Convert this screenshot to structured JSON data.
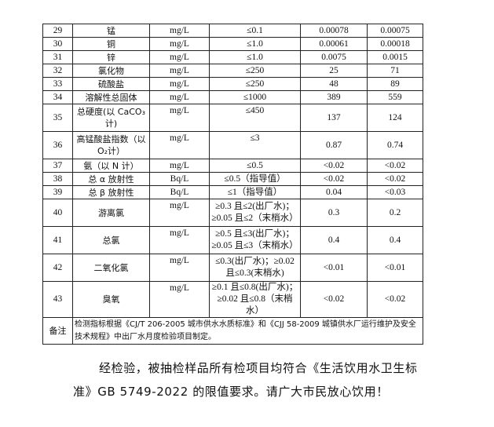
{
  "table": {
    "rows": [
      {
        "no": "29",
        "item": "锰",
        "unit": "mg/L",
        "limit": "≤0.1",
        "v1": "0.00078",
        "v2": "0.00075"
      },
      {
        "no": "30",
        "item": "铜",
        "unit": "mg/L",
        "limit": "≤1.0",
        "v1": "0.00061",
        "v2": "0.00018"
      },
      {
        "no": "31",
        "item": "锌",
        "unit": "mg/L",
        "limit": "≤1.0",
        "v1": "0.0075",
        "v2": "0.0015"
      },
      {
        "no": "32",
        "item": "氯化物",
        "unit": "mg/L",
        "limit": "≤250",
        "v1": "25",
        "v2": "71"
      },
      {
        "no": "33",
        "item": "硫酸盐",
        "unit": "mg/L",
        "limit": "≤250",
        "v1": "48",
        "v2": "89"
      },
      {
        "no": "34",
        "item": "溶解性总固体",
        "unit": "mg/L",
        "limit": "≤1000",
        "v1": "389",
        "v2": "559"
      },
      {
        "no": "35",
        "item": "总硬度(以 CaCO₃ 计)",
        "unit": "mg/L",
        "limit": "≤450",
        "v1": "137",
        "v2": "124",
        "tall": true
      },
      {
        "no": "36",
        "item": "高锰酸盐指数（以 O₂计）",
        "unit": "mg/L",
        "limit": "≤3",
        "v1": "0.87",
        "v2": "0.74",
        "tall": true
      },
      {
        "no": "37",
        "item": "氨（以 N 计）",
        "unit": "mg/L",
        "limit": "≤0.5",
        "v1": "<0.02",
        "v2": "<0.02"
      },
      {
        "no": "38",
        "item": "总 α 放射性",
        "unit": "Bq/L",
        "limit": "≤0.5（指导值）",
        "v1": "<0.02",
        "v2": "<0.02"
      },
      {
        "no": "39",
        "item": "总 β 放射性",
        "unit": "Bq/L",
        "limit": "≤1（指导值）",
        "v1": "0.04",
        "v2": "<0.03"
      },
      {
        "no": "40",
        "item": "游离氯",
        "unit": "mg/L",
        "limit": "≥0.3 且≤2(出厂水)；≥0.05 且≤2（末梢水）",
        "v1": "0.3",
        "v2": "0.2",
        "tall": true
      },
      {
        "no": "41",
        "item": "总氯",
        "unit": "mg/L",
        "limit": "≥0.5 且≤3(出厂水)；≥0.05 且≤3（末梢水）",
        "v1": "0.4",
        "v2": "0.4",
        "tall": true
      },
      {
        "no": "42",
        "item": "二氧化氯",
        "unit": "mg/L",
        "limit": "≤0.3(出厂水)；≥0.02 且≤0.3(末梢水)",
        "v1": "<0.01",
        "v2": "<0.01",
        "tall": true
      },
      {
        "no": "43",
        "item": "臭氧",
        "unit": "mg/L",
        "limit": "≥0.1 且≤0.8(出厂水)；≥0.02 且≤0.8（末梢水）",
        "v1": "<0.02",
        "v2": "<0.02",
        "tall": true
      }
    ],
    "note_label": "备注",
    "note_text": "检测指标根据《CJ/T 206-2005 城市供水水质标准》和《CJJ 58-2009 城镇供水厂运行维护及安全技术规程》中出厂水月度检验项目制定。"
  },
  "conclusion": "经检验，被抽检样品所有检项目均符合《生活饮用水卫生标准》GB 5749-2022 的限值要求。请广大市民放心饮用！"
}
